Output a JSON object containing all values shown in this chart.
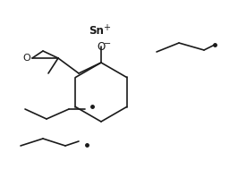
{
  "bg_color": "#ffffff",
  "line_color": "#1a1a1a",
  "line_width": 1.2,
  "font_size_label": 8.5,
  "sn_label": "Sn",
  "sn_charge": "+",
  "o_label": "O",
  "o_charge": "−",
  "epoxide_o": "O"
}
